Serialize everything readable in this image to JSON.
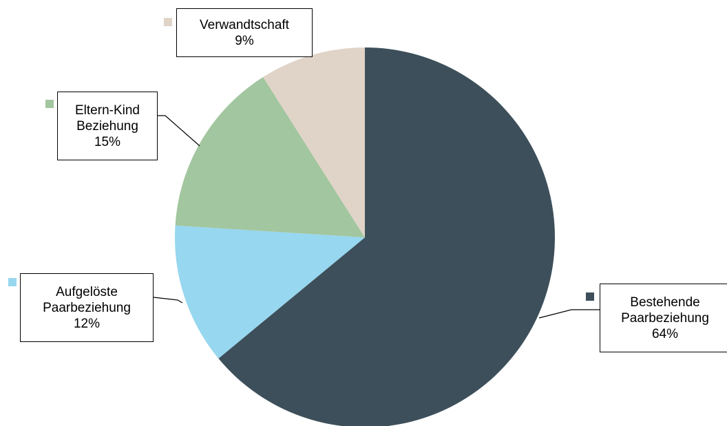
{
  "chart_data": {
    "type": "pie",
    "categories": [
      "Bestehende Paarbeziehung",
      "Aufgelöste Paarbeziehung",
      "Eltern-Kind Beziehung",
      "Verwandtschaft"
    ],
    "values": [
      64,
      12,
      15,
      9
    ],
    "value_labels": [
      "64%",
      "12%",
      "15%",
      "9%"
    ],
    "colors": [
      "#3d4f5a",
      "#97d7ef",
      "#a2c69f",
      "#e0d3c7"
    ]
  }
}
